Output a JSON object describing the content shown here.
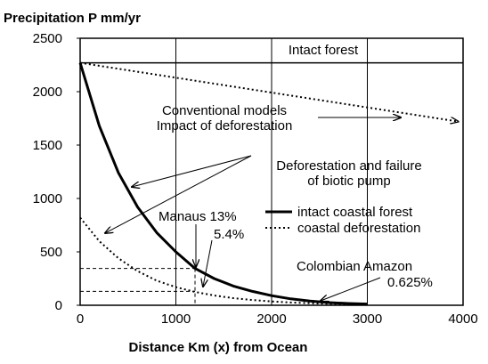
{
  "chart_data": {
    "type": "line",
    "title": "",
    "ylabel": "Precipitation P mm/yr",
    "xlabel": "Distance Km (x) from Ocean",
    "xlim": [
      0,
      4000
    ],
    "ylim": [
      0,
      2500
    ],
    "xticks": [
      "0",
      "1000",
      "2000",
      "3000",
      "4000"
    ],
    "yticks": [
      "0",
      "500",
      "1000",
      "1500",
      "2000",
      "2500"
    ],
    "grid": "vertical",
    "series": [
      {
        "name": "intact coastal forest",
        "style": "solid-thick",
        "points": [
          [
            0,
            2270
          ],
          [
            200,
            1680
          ],
          [
            400,
            1240
          ],
          [
            600,
            920
          ],
          [
            800,
            680
          ],
          [
            1000,
            500
          ],
          [
            1200,
            345
          ],
          [
            1400,
            250
          ],
          [
            1600,
            180
          ],
          [
            1800,
            130
          ],
          [
            2000,
            90
          ],
          [
            2200,
            60
          ],
          [
            2400,
            40
          ],
          [
            2600,
            25
          ],
          [
            2800,
            17
          ],
          [
            3000,
            12
          ]
        ]
      },
      {
        "name": "coastal deforestation",
        "style": "dotted",
        "points": [
          [
            0,
            820
          ],
          [
            200,
            600
          ],
          [
            400,
            440
          ],
          [
            600,
            320
          ],
          [
            800,
            230
          ],
          [
            1000,
            170
          ],
          [
            1200,
            125
          ],
          [
            1400,
            92
          ],
          [
            1600,
            67
          ],
          [
            1800,
            49
          ],
          [
            2000,
            36
          ],
          [
            2200,
            26
          ],
          [
            2400,
            19
          ],
          [
            2600,
            14
          ],
          [
            2800,
            11
          ],
          [
            3000,
            9
          ]
        ]
      },
      {
        "name": "Intact forest",
        "style": "solid",
        "points": [
          [
            0,
            2270
          ],
          [
            4000,
            2270
          ]
        ]
      },
      {
        "name": "Conventional models",
        "style": "dotted-arrow",
        "points": [
          [
            0,
            2270
          ],
          [
            3950,
            1720
          ]
        ]
      }
    ],
    "guides": [
      {
        "x": 1200,
        "y": 345
      },
      {
        "x": 1200,
        "y": 130
      }
    ],
    "annotations": {
      "intact_forest": "Intact forest",
      "conventional_1": "Conventional models",
      "conventional_2": "Impact of deforestation",
      "biotic_1": "Deforestation and failure",
      "biotic_2": "of biotic pump",
      "manaus": "Manaus 13%",
      "manaus_pct": "5.4%",
      "colombian": "Colombian Amazon",
      "colombian_pct": "0.625%"
    },
    "legend": {
      "placement": "center-right",
      "entries": [
        "intact coastal forest",
        "coastal deforestation"
      ]
    }
  }
}
